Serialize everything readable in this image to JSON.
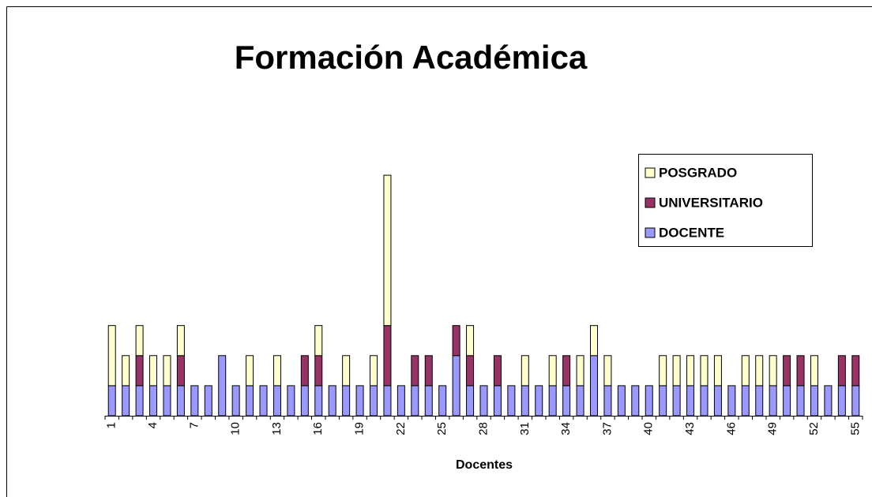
{
  "chart_data": {
    "type": "bar",
    "stacked": true,
    "title": "Formación Académica",
    "x_label": "Docentes",
    "categories": [
      1,
      null,
      null,
      4,
      null,
      null,
      7,
      null,
      null,
      10,
      null,
      null,
      13,
      null,
      null,
      16,
      null,
      null,
      19,
      null,
      null,
      22,
      null,
      null,
      25,
      null,
      null,
      28,
      null,
      null,
      31,
      null,
      null,
      34,
      null,
      null,
      37,
      null,
      null,
      40,
      null,
      null,
      43,
      null,
      null,
      46,
      null,
      null,
      49,
      null,
      null,
      52,
      null,
      null,
      55
    ],
    "series": [
      {
        "name": "DOCENTE",
        "color": "#9999ff",
        "values": [
          1,
          1,
          1,
          1,
          1,
          1,
          1,
          1,
          2,
          1,
          1,
          1,
          1,
          1,
          1,
          1,
          1,
          1,
          1,
          1,
          1,
          1,
          1,
          1,
          1,
          2,
          1,
          1,
          1,
          1,
          1,
          1,
          1,
          1,
          1,
          2,
          1,
          1,
          1,
          1,
          1,
          1,
          1,
          1,
          1,
          1,
          1,
          1,
          1,
          1,
          1,
          1,
          1,
          1,
          1
        ]
      },
      {
        "name": "UNIVERSITARIO",
        "color": "#993366",
        "values": [
          0,
          0,
          1,
          0,
          0,
          1,
          0,
          0,
          0,
          0,
          0,
          0,
          0,
          0,
          1,
          1,
          0,
          0,
          0,
          0,
          2,
          0,
          1,
          1,
          0,
          1,
          1,
          0,
          1,
          0,
          0,
          0,
          0,
          1,
          0,
          0,
          0,
          0,
          0,
          0,
          0,
          0,
          0,
          0,
          0,
          0,
          0,
          0,
          0,
          1,
          1,
          0,
          0,
          1,
          1
        ]
      },
      {
        "name": "POSGRADO",
        "color": "#ffffcc",
        "values": [
          2,
          1,
          1,
          1,
          1,
          1,
          0,
          0,
          0,
          0,
          1,
          0,
          1,
          0,
          0,
          1,
          0,
          1,
          0,
          1,
          5,
          0,
          0,
          0,
          0,
          0,
          1,
          0,
          0,
          0,
          1,
          0,
          1,
          0,
          1,
          1,
          1,
          0,
          0,
          0,
          1,
          1,
          1,
          1,
          1,
          0,
          1,
          1,
          1,
          0,
          0,
          1,
          0,
          0,
          0
        ]
      }
    ],
    "ylim": [
      0,
      9
    ],
    "legend": "right"
  }
}
